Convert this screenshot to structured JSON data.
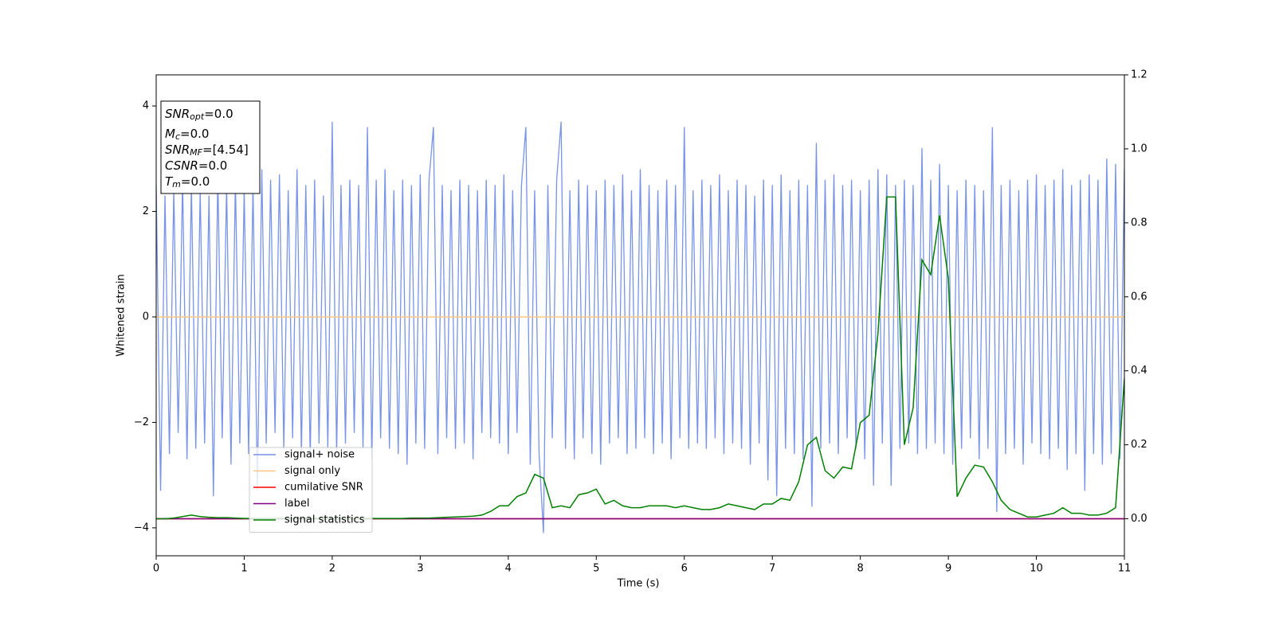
{
  "chart_data": {
    "type": "line",
    "xlabel": "Time (s)",
    "ylabel": "Whitened strain",
    "xlim": [
      0,
      11
    ],
    "xticks": [
      0,
      1,
      2,
      3,
      4,
      5,
      6,
      7,
      8,
      9,
      10,
      11
    ],
    "ylim": [
      -4.53,
      4.59
    ],
    "yticks": [
      {
        "value": -4,
        "label": "−4"
      },
      {
        "value": -2,
        "label": "−2"
      },
      0,
      2,
      4
    ],
    "y2lim": [
      -0.1,
      1.2
    ],
    "y2ticks": [
      {
        "value": 0,
        "label": "0.0"
      },
      {
        "value": 0.2,
        "label": "0.2"
      },
      {
        "value": 0.4,
        "label": "0.4"
      },
      {
        "value": 0.6,
        "label": "0.6"
      },
      {
        "value": 0.8,
        "label": "0.8"
      },
      {
        "value": 1.0,
        "label": "1.0"
      },
      {
        "value": 1.2,
        "label": "1.2"
      }
    ],
    "legend": "lower left",
    "annotations": [
      {
        "var": "SNR",
        "sub": "opt",
        "text": "=0.0"
      },
      {
        "var": "M",
        "sub": "c",
        "text": "=0.0"
      },
      {
        "var": "SNR",
        "sub": "MF",
        "text": "=[4.54]"
      },
      {
        "var": "CSNR",
        "text": "=0.0"
      },
      {
        "var": "T",
        "sub": "m",
        "text": "=0.0"
      }
    ],
    "series": [
      {
        "name": "signal+ noise",
        "color": "#7893e8",
        "x": [
          0,
          0.05,
          0.1,
          0.15,
          0.2,
          0.25,
          0.3,
          0.35,
          0.4,
          0.45,
          0.5,
          0.55,
          0.6,
          0.65,
          0.7,
          0.75,
          0.8,
          0.85,
          0.9,
          0.95,
          1,
          1.05,
          1.1,
          1.15,
          1.2,
          1.25,
          1.3,
          1.35,
          1.4,
          1.45,
          1.5,
          1.55,
          1.6,
          1.65,
          1.7,
          1.75,
          1.8,
          1.85,
          1.9,
          1.95,
          2,
          2.05,
          2.1,
          2.15,
          2.2,
          2.25,
          2.3,
          2.35,
          2.4,
          2.45,
          2.5,
          2.55,
          2.6,
          2.65,
          2.7,
          2.75,
          2.8,
          2.85,
          2.9,
          2.95,
          3,
          3.05,
          3.1,
          3.15,
          3.2,
          3.25,
          3.3,
          3.35,
          3.4,
          3.45,
          3.5,
          3.55,
          3.6,
          3.65,
          3.7,
          3.75,
          3.8,
          3.85,
          3.9,
          3.95,
          4,
          4.05,
          4.1,
          4.15,
          4.2,
          4.25,
          4.3,
          4.35,
          4.4,
          4.45,
          4.5,
          4.55,
          4.6,
          4.65,
          4.7,
          4.75,
          4.8,
          4.85,
          4.9,
          4.95,
          5,
          5.05,
          5.1,
          5.15,
          5.2,
          5.25,
          5.3,
          5.35,
          5.4,
          5.45,
          5.5,
          5.55,
          5.6,
          5.65,
          5.7,
          5.75,
          5.8,
          5.85,
          5.9,
          5.95,
          6,
          6.05,
          6.1,
          6.15,
          6.2,
          6.25,
          6.3,
          6.35,
          6.4,
          6.45,
          6.5,
          6.55,
          6.6,
          6.65,
          6.7,
          6.75,
          6.8,
          6.85,
          6.9,
          6.95,
          7,
          7.05,
          7.1,
          7.15,
          7.2,
          7.25,
          7.3,
          7.35,
          7.4,
          7.45,
          7.5,
          7.55,
          7.6,
          7.65,
          7.7,
          7.75,
          7.8,
          7.85,
          7.9,
          7.95,
          8,
          8.05,
          8.1,
          8.15,
          8.2,
          8.25,
          8.3,
          8.35,
          8.4,
          8.45,
          8.5,
          8.55,
          8.6,
          8.65,
          8.7,
          8.75,
          8.8,
          8.85,
          8.9,
          8.95,
          9,
          9.05,
          9.1,
          9.15,
          9.2,
          9.25,
          9.3,
          9.35,
          9.4,
          9.45,
          9.5,
          9.55,
          9.6,
          9.65,
          9.7,
          9.75,
          9.8,
          9.85,
          9.9,
          9.95,
          10,
          10.05,
          10.1,
          10.15,
          10.2,
          10.25,
          10.3,
          10.35,
          10.4,
          10.45,
          10.5,
          10.55,
          10.6,
          10.65,
          10.7,
          10.75,
          10.8,
          10.85,
          10.9,
          10.95,
          11
        ],
        "values": [
          2.5,
          -3.3,
          2.3,
          -2.6,
          2.4,
          -2.2,
          2.6,
          -2.7,
          2.5,
          -2.5,
          2.4,
          -2.4,
          2.3,
          -3.4,
          2.7,
          -2.3,
          2.5,
          -2.8,
          2.6,
          -2.4,
          2.4,
          -2.6,
          2.5,
          -3.3,
          2.8,
          -2.4,
          2.6,
          -2.2,
          2.7,
          -2.5,
          2.4,
          -2.3,
          2.8,
          -2.6,
          2.5,
          -2.7,
          2.6,
          -2.4,
          2.3,
          -2.5,
          3.7,
          -2.6,
          2.5,
          -2.4,
          2.6,
          -2.2,
          2.5,
          -2.5,
          3.6,
          -2.7,
          2.6,
          -2.3,
          2.8,
          -2.5,
          2.4,
          -2.6,
          2.6,
          -2.8,
          2.5,
          -2.4,
          2.7,
          -2.5,
          2.6,
          3.6,
          -2.6,
          2.5,
          -2.3,
          2.4,
          -2.5,
          2.6,
          -2.4,
          2.5,
          -2.7,
          2.4,
          -2.2,
          2.6,
          -2.3,
          2.5,
          -2.4,
          2.7,
          -2.6,
          2.4,
          -2.2,
          2.5,
          3.6,
          -2.8,
          2.4,
          -2.6,
          -4.1,
          2.5,
          -2.3,
          2.6,
          3.7,
          -2.5,
          2.4,
          -2.7,
          2.6,
          -2.3,
          2.5,
          -2.6,
          2.4,
          -2.8,
          2.6,
          -2.4,
          2.5,
          -2.3,
          2.7,
          -2.6,
          2.4,
          -2.5,
          2.8,
          -2.3,
          2.5,
          -2.6,
          2.4,
          -2.4,
          2.6,
          -2.7,
          2.5,
          -2.3,
          3.6,
          -2.5,
          2.4,
          -2.4,
          2.6,
          -2.5,
          2.5,
          -2.3,
          2.7,
          -2.6,
          2.4,
          -2.4,
          2.6,
          -2.5,
          2.5,
          -2.8,
          2.3,
          -2.4,
          2.6,
          -3.1,
          2.5,
          -3.4,
          2.7,
          -2.5,
          2.4,
          -2.6,
          2.6,
          -2.7,
          2.5,
          -3.6,
          3.3,
          -2.5,
          2.6,
          -2.4,
          2.7,
          -2.6,
          2.5,
          -2.3,
          2.6,
          -2.5,
          2.4,
          -2.7,
          2.6,
          -3.2,
          2.8,
          -2.4,
          2.7,
          -3.2,
          2.5,
          -2.5,
          2.6,
          -2.4,
          2.5,
          -2.6,
          3.2,
          -2.5,
          2.6,
          -2.4,
          2.9,
          -2.6,
          2.5,
          -2.8,
          2.4,
          -2.5,
          2.6,
          -2.3,
          2.5,
          -2.7,
          2.4,
          -2.5,
          3.6,
          -3.7,
          2.5,
          -2.6,
          2.6,
          -2.5,
          2.4,
          -2.8,
          2.6,
          -2.4,
          2.7,
          -2.6,
          2.5,
          -2.7,
          2.6,
          -2.5,
          2.8,
          -2.9,
          2.5,
          -2.6,
          2.6,
          -3.3,
          2.7,
          -2.6,
          2.6,
          -2.8,
          3.0,
          -2.6,
          2.9,
          -2.7,
          2.8
        ]
      },
      {
        "name": "signal only",
        "color": "#ffc680",
        "x": [
          0,
          11
        ],
        "values": [
          0,
          0
        ]
      },
      {
        "name": "cumilative SNR",
        "color": "#ff0000",
        "axis": "y2",
        "x": [
          0,
          11
        ],
        "values": [
          0,
          0
        ]
      },
      {
        "name": "label",
        "color": "#800080",
        "axis": "y2",
        "x": [
          0,
          11
        ],
        "values": [
          0,
          0
        ]
      },
      {
        "name": "signal statistics",
        "color": "#008000",
        "axis": "y2",
        "x": [
          0,
          0.1,
          0.2,
          0.3,
          0.4,
          0.5,
          0.6,
          0.7,
          0.8,
          0.9,
          1,
          1.1,
          1.2,
          1.3,
          1.4,
          1.5,
          1.6,
          1.7,
          1.8,
          1.9,
          2,
          2.1,
          2.2,
          2.3,
          2.4,
          2.5,
          2.6,
          2.7,
          2.8,
          2.9,
          3,
          3.1,
          3.2,
          3.3,
          3.4,
          3.5,
          3.6,
          3.7,
          3.8,
          3.9,
          4,
          4.1,
          4.2,
          4.3,
          4.4,
          4.5,
          4.6,
          4.7,
          4.8,
          4.9,
          5,
          5.1,
          5.2,
          5.3,
          5.4,
          5.5,
          5.6,
          5.7,
          5.8,
          5.9,
          6,
          6.1,
          6.2,
          6.3,
          6.4,
          6.5,
          6.6,
          6.7,
          6.8,
          6.9,
          7,
          7.1,
          7.2,
          7.3,
          7.4,
          7.5,
          7.6,
          7.7,
          7.8,
          7.9,
          8,
          8.1,
          8.2,
          8.3,
          8.4,
          8.5,
          8.6,
          8.7,
          8.8,
          8.9,
          9,
          9.1,
          9.2,
          9.3,
          9.4,
          9.5,
          9.6,
          9.7,
          9.8,
          9.9,
          10,
          10.1,
          10.2,
          10.3,
          10.4,
          10.5,
          10.6,
          10.7,
          10.8,
          10.9,
          11
        ],
        "values": [
          0,
          0,
          0.002,
          0.006,
          0.01,
          0.006,
          0.004,
          0.003,
          0.003,
          0.002,
          0.001,
          0.001,
          0.001,
          0.001,
          0.001,
          0.001,
          0.001,
          0.001,
          0.001,
          0.001,
          0.001,
          0.001,
          0.001,
          0.001,
          0.001,
          0.001,
          0.001,
          0.001,
          0.001,
          0.002,
          0.002,
          0.002,
          0.003,
          0.004,
          0.005,
          0.006,
          0.007,
          0.01,
          0.02,
          0.035,
          0.035,
          0.06,
          0.07,
          0.12,
          0.11,
          0.03,
          0.035,
          0.03,
          0.065,
          0.07,
          0.08,
          0.04,
          0.05,
          0.035,
          0.03,
          0.03,
          0.035,
          0.035,
          0.035,
          0.03,
          0.035,
          0.03,
          0.025,
          0.025,
          0.03,
          0.04,
          0.035,
          0.03,
          0.025,
          0.04,
          0.04,
          0.055,
          0.05,
          0.1,
          0.2,
          0.22,
          0.13,
          0.11,
          0.14,
          0.135,
          0.26,
          0.28,
          0.5,
          0.87,
          0.87,
          0.2,
          0.3,
          0.7,
          0.66,
          0.82,
          0.65,
          0.06,
          0.11,
          0.145,
          0.14,
          0.1,
          0.05,
          0.025,
          0.015,
          0.005,
          0.005,
          0.01,
          0.015,
          0.03,
          0.015,
          0.015,
          0.01,
          0.01,
          0.015,
          0.03,
          0.38
        ]
      }
    ]
  }
}
